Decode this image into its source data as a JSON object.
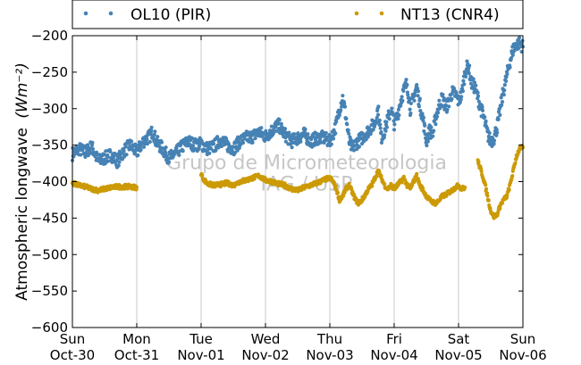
{
  "chart_data": {
    "type": "scatter",
    "ylabel": "Atmospheric longwave",
    "ylabel_unit": "(Wm⁻²)",
    "ylim": [
      -600,
      -200
    ],
    "yticks": [
      -600,
      -550,
      -500,
      -450,
      -400,
      -350,
      -300,
      -250,
      -200
    ],
    "ytick_labels": [
      "−600",
      "−550",
      "−500",
      "−450",
      "−400",
      "−350",
      "−300",
      "−250",
      "−200"
    ],
    "xlim": [
      0,
      7
    ],
    "xticks": [
      {
        "x": 0,
        "day": "Sun",
        "date": "Oct-30"
      },
      {
        "x": 1,
        "day": "Mon",
        "date": "Oct-31"
      },
      {
        "x": 2,
        "day": "Tue",
        "date": "Nov-01"
      },
      {
        "x": 3,
        "day": "Wed",
        "date": "Nov-02"
      },
      {
        "x": 4,
        "day": "Thu",
        "date": "Nov-03"
      },
      {
        "x": 5,
        "day": "Fri",
        "date": "Nov-04"
      },
      {
        "x": 6,
        "day": "Sat",
        "date": "Nov-05"
      },
      {
        "x": 7,
        "day": "Sun",
        "date": "Nov-06"
      }
    ],
    "grid": "vertical",
    "legend_position": "top",
    "watermark": [
      "Grupo de Micrometeorologia",
      "IAG / USP"
    ],
    "series": [
      {
        "name": "OL10 (PIR)",
        "color": "#4682b4",
        "marker": "dot",
        "points": [
          [
            0.0,
            -362
          ],
          [
            0.1,
            -355
          ],
          [
            0.2,
            -360
          ],
          [
            0.3,
            -352
          ],
          [
            0.4,
            -372
          ],
          [
            0.5,
            -368
          ],
          [
            0.6,
            -363
          ],
          [
            0.7,
            -372
          ],
          [
            0.8,
            -358
          ],
          [
            0.9,
            -350
          ],
          [
            1.0,
            -360
          ],
          [
            1.1,
            -345
          ],
          [
            1.2,
            -338
          ],
          [
            1.25,
            -330
          ],
          [
            1.3,
            -345
          ],
          [
            1.4,
            -355
          ],
          [
            1.5,
            -368
          ],
          [
            1.6,
            -362
          ],
          [
            1.7,
            -352
          ],
          [
            1.8,
            -345
          ],
          [
            1.9,
            -350
          ],
          [
            2.0,
            -348
          ],
          [
            2.1,
            -355
          ],
          [
            2.2,
            -352
          ],
          [
            2.3,
            -342
          ],
          [
            2.4,
            -350
          ],
          [
            2.5,
            -355
          ],
          [
            2.6,
            -345
          ],
          [
            2.7,
            -340
          ],
          [
            2.8,
            -338
          ],
          [
            2.9,
            -332
          ],
          [
            3.0,
            -338
          ],
          [
            3.1,
            -330
          ],
          [
            3.2,
            -322
          ],
          [
            3.3,
            -335
          ],
          [
            3.4,
            -345
          ],
          [
            3.5,
            -340
          ],
          [
            3.6,
            -335
          ],
          [
            3.7,
            -345
          ],
          [
            3.8,
            -340
          ],
          [
            3.9,
            -340
          ],
          [
            4.0,
            -345
          ],
          [
            4.05,
            -335
          ],
          [
            4.1,
            -322
          ],
          [
            4.15,
            -300
          ],
          [
            4.2,
            -285
          ],
          [
            4.25,
            -310
          ],
          [
            4.3,
            -345
          ],
          [
            4.35,
            -355
          ],
          [
            4.4,
            -348
          ],
          [
            4.5,
            -340
          ],
          [
            4.6,
            -330
          ],
          [
            4.7,
            -320
          ],
          [
            4.75,
            -300
          ],
          [
            4.8,
            -340
          ],
          [
            4.85,
            -330
          ],
          [
            4.9,
            -315
          ],
          [
            4.95,
            -300
          ],
          [
            5.0,
            -320
          ],
          [
            5.05,
            -310
          ],
          [
            5.1,
            -290
          ],
          [
            5.15,
            -275
          ],
          [
            5.2,
            -265
          ],
          [
            5.25,
            -300
          ],
          [
            5.3,
            -285
          ],
          [
            5.35,
            -270
          ],
          [
            5.4,
            -295
          ],
          [
            5.45,
            -315
          ],
          [
            5.5,
            -345
          ],
          [
            5.55,
            -330
          ],
          [
            5.6,
            -335
          ],
          [
            5.65,
            -310
          ],
          [
            5.7,
            -295
          ],
          [
            5.75,
            -285
          ],
          [
            5.8,
            -300
          ],
          [
            5.85,
            -290
          ],
          [
            5.9,
            -278
          ],
          [
            5.95,
            -280
          ],
          [
            6.0,
            -290
          ],
          [
            6.05,
            -280
          ],
          [
            6.1,
            -250
          ],
          [
            6.15,
            -240
          ],
          [
            6.2,
            -265
          ],
          [
            6.25,
            -270
          ],
          [
            6.3,
            -285
          ],
          [
            6.35,
            -300
          ],
          [
            6.4,
            -315
          ],
          [
            6.45,
            -335
          ],
          [
            6.5,
            -345
          ],
          [
            6.55,
            -340
          ],
          [
            6.6,
            -325
          ],
          [
            6.65,
            -300
          ],
          [
            6.7,
            -275
          ],
          [
            6.75,
            -255
          ],
          [
            6.8,
            -235
          ],
          [
            6.85,
            -218
          ],
          [
            6.9,
            -212
          ],
          [
            6.95,
            -210
          ],
          [
            7.0,
            -215
          ]
        ]
      },
      {
        "name": "NT13 (CNR4)",
        "color": "#cc9a06",
        "marker": "dot",
        "segments": [
          [
            [
              0.0,
              -402
            ],
            [
              0.1,
              -405
            ],
            [
              0.2,
              -407
            ],
            [
              0.3,
              -410
            ],
            [
              0.4,
              -412
            ],
            [
              0.5,
              -410
            ],
            [
              0.6,
              -408
            ],
            [
              0.7,
              -407
            ],
            [
              0.8,
              -407
            ],
            [
              0.9,
              -407
            ],
            [
              1.0,
              -408
            ]
          ],
          [
            [
              2.0,
              -390
            ],
            [
              2.05,
              -398
            ],
            [
              2.1,
              -403
            ],
            [
              2.2,
              -405
            ],
            [
              2.3,
              -404
            ],
            [
              2.4,
              -402
            ],
            [
              2.5,
              -405
            ],
            [
              2.6,
              -400
            ],
            [
              2.7,
              -398
            ],
            [
              2.8,
              -395
            ],
            [
              2.9,
              -392
            ],
            [
              3.0,
              -398
            ],
            [
              3.1,
              -400
            ],
            [
              3.2,
              -403
            ],
            [
              3.3,
              -405
            ],
            [
              3.4,
              -410
            ],
            [
              3.5,
              -412
            ],
            [
              3.6,
              -408
            ],
            [
              3.7,
              -405
            ],
            [
              3.8,
              -402
            ],
            [
              3.9,
              -398
            ],
            [
              4.0,
              -395
            ],
            [
              4.05,
              -400
            ],
            [
              4.1,
              -410
            ],
            [
              4.15,
              -425
            ],
            [
              4.2,
              -420
            ],
            [
              4.25,
              -410
            ],
            [
              4.3,
              -405
            ],
            [
              4.35,
              -415
            ],
            [
              4.4,
              -425
            ],
            [
              4.45,
              -430
            ],
            [
              4.5,
              -425
            ],
            [
              4.55,
              -418
            ],
            [
              4.6,
              -410
            ],
            [
              4.65,
              -405
            ],
            [
              4.7,
              -395
            ],
            [
              4.75,
              -385
            ],
            [
              4.8,
              -395
            ],
            [
              4.85,
              -405
            ],
            [
              4.9,
              -410
            ],
            [
              4.95,
              -405
            ],
            [
              5.0,
              -410
            ],
            [
              5.05,
              -405
            ],
            [
              5.1,
              -400
            ],
            [
              5.15,
              -395
            ],
            [
              5.2,
              -405
            ],
            [
              5.25,
              -410
            ],
            [
              5.3,
              -400
            ],
            [
              5.35,
              -392
            ],
            [
              5.4,
              -405
            ],
            [
              5.45,
              -412
            ],
            [
              5.5,
              -420
            ],
            [
              5.55,
              -425
            ],
            [
              5.6,
              -428
            ],
            [
              5.65,
              -430
            ],
            [
              5.7,
              -425
            ],
            [
              5.75,
              -420
            ],
            [
              5.8,
              -418
            ],
            [
              5.85,
              -415
            ],
            [
              5.9,
              -412
            ],
            [
              5.95,
              -408
            ],
            [
              6.0,
              -405
            ],
            [
              6.05,
              -410
            ],
            [
              6.1,
              -408
            ]
          ],
          [
            [
              6.3,
              -372
            ],
            [
              6.35,
              -385
            ],
            [
              6.4,
              -400
            ],
            [
              6.45,
              -420
            ],
            [
              6.5,
              -440
            ],
            [
              6.55,
              -448
            ],
            [
              6.6,
              -445
            ],
            [
              6.65,
              -432
            ],
            [
              6.7,
              -425
            ],
            [
              6.75,
              -420
            ],
            [
              6.8,
              -405
            ],
            [
              6.85,
              -385
            ],
            [
              6.9,
              -365
            ],
            [
              6.95,
              -355
            ],
            [
              7.0,
              -353
            ]
          ]
        ]
      }
    ]
  }
}
